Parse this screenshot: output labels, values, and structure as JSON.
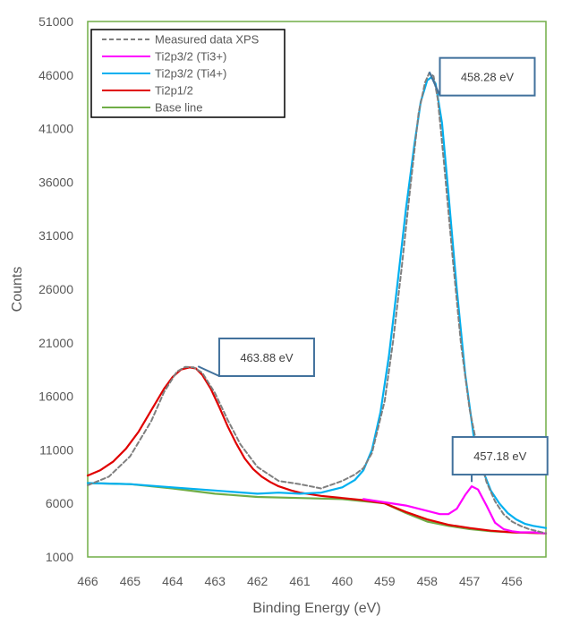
{
  "chart_data": {
    "type": "line",
    "title": "",
    "xlabel": "Binding Energy (eV)",
    "ylabel": "Counts",
    "xlim": [
      466,
      455.2
    ],
    "ylim": [
      1000,
      51000
    ],
    "x_ticks": [
      "466",
      "465",
      "464",
      "463",
      "462",
      "461",
      "460",
      "459",
      "458",
      "457",
      "456"
    ],
    "y_ticks": [
      "1000",
      "6000",
      "11000",
      "16000",
      "21000",
      "26000",
      "31000",
      "36000",
      "41000",
      "46000",
      "51000"
    ],
    "colors": {
      "plot_border": "#70AD47",
      "callout_border": "#41719C",
      "callout_line": "#41719C"
    },
    "legend": {
      "position": "top-left",
      "entries": [
        "Measured data XPS",
        "Ti2p3/2 (Ti3+)",
        "Ti2p3/2 (Ti4+)",
        "Ti2p1/2",
        "Base line"
      ]
    },
    "series": [
      {
        "name": "Measured data XPS",
        "color": "#7F7F7F",
        "dashed": true,
        "x": [
          466.0,
          465.5,
          465.0,
          464.5,
          464.2,
          463.9,
          463.7,
          463.5,
          463.3,
          463.0,
          462.7,
          462.4,
          462.0,
          461.5,
          461.0,
          460.5,
          460.0,
          459.7,
          459.5,
          459.3,
          459.0,
          458.8,
          458.6,
          458.4,
          458.2,
          458.05,
          457.95,
          457.85,
          457.75,
          457.6,
          457.4,
          457.2,
          457.0,
          456.8,
          456.6,
          456.4,
          456.2,
          456.0,
          455.8,
          455.6,
          455.4,
          455.2
        ],
        "y": [
          7700,
          8500,
          10400,
          13700,
          16400,
          18300,
          18750,
          18700,
          18200,
          16300,
          13800,
          11500,
          9400,
          8100,
          7800,
          7400,
          8100,
          8700,
          9300,
          10700,
          15600,
          21200,
          28000,
          35400,
          42500,
          45300,
          46200,
          45900,
          43800,
          37700,
          29000,
          20800,
          14800,
          10900,
          8000,
          6200,
          5000,
          4300,
          3900,
          3600,
          3400,
          3200
        ]
      },
      {
        "name": "Ti2p3/2 (Ti3+)",
        "color": "#FF00FF",
        "dashed": false,
        "x": [
          459.5,
          458.5,
          458.0,
          457.7,
          457.5,
          457.3,
          457.1,
          456.95,
          456.8,
          456.6,
          456.4,
          456.2,
          456.0,
          455.8,
          455.5,
          455.2
        ],
        "y": [
          6400,
          5800,
          5300,
          5000,
          5000,
          5500,
          6800,
          7600,
          7300,
          5800,
          4200,
          3600,
          3400,
          3300,
          3300,
          3200
        ]
      },
      {
        "name": "Ti2p3/2 (Ti4+)",
        "color": "#00B0F0",
        "dashed": false,
        "x": [
          466.0,
          465.0,
          464.0,
          463.0,
          462.0,
          461.5,
          461.0,
          460.5,
          460.0,
          459.7,
          459.5,
          459.3,
          459.1,
          458.9,
          458.7,
          458.5,
          458.3,
          458.15,
          458.0,
          457.9,
          457.8,
          457.65,
          457.5,
          457.3,
          457.1,
          456.9,
          456.7,
          456.5,
          456.3,
          456.1,
          455.9,
          455.7,
          455.5,
          455.2
        ],
        "y": [
          7900,
          7800,
          7500,
          7200,
          6900,
          7000,
          6900,
          7000,
          7500,
          8200,
          9100,
          11000,
          14500,
          19800,
          26500,
          33500,
          39500,
          43500,
          45500,
          45800,
          45200,
          41500,
          35000,
          26000,
          18000,
          12200,
          9200,
          7200,
          6000,
          5100,
          4500,
          4100,
          3900,
          3700
        ]
      },
      {
        "name": "Ti2p1/2",
        "color": "#E00000",
        "dashed": false,
        "x": [
          466.0,
          465.7,
          465.4,
          465.1,
          464.8,
          464.5,
          464.2,
          464.0,
          463.8,
          463.6,
          463.45,
          463.3,
          463.1,
          462.9,
          462.7,
          462.5,
          462.3,
          462.1,
          461.9,
          461.7,
          461.5,
          461.2,
          461.0,
          460.5,
          460.0,
          459.5,
          459.0,
          458.5,
          458.0,
          457.5,
          457.0,
          456.5,
          456.0,
          455.5,
          455.2
        ],
        "y": [
          8600,
          9100,
          9900,
          11100,
          12700,
          14700,
          16700,
          17800,
          18500,
          18700,
          18600,
          18000,
          16700,
          15000,
          13200,
          11600,
          10200,
          9200,
          8500,
          8000,
          7600,
          7200,
          7000,
          6700,
          6500,
          6300,
          6000,
          5200,
          4500,
          4000,
          3700,
          3450,
          3300,
          3250,
          3200
        ]
      },
      {
        "name": "Base line",
        "color": "#70AD47",
        "dashed": false,
        "x": [
          466.0,
          465.0,
          464.0,
          463.0,
          462.0,
          461.0,
          460.0,
          459.5,
          459.0,
          458.5,
          458.0,
          457.5,
          457.0,
          456.5,
          456.0,
          455.5,
          455.2
        ],
        "y": [
          7900,
          7800,
          7400,
          6900,
          6600,
          6500,
          6400,
          6200,
          6000,
          5100,
          4300,
          3900,
          3600,
          3400,
          3300,
          3250,
          3200
        ]
      }
    ],
    "annotations": [
      {
        "text": "458.28 eV",
        "point_x": 457.95,
        "point_y": 46300,
        "box_x": 457.7,
        "box_y": 47600
      },
      {
        "text": "463.88 eV",
        "point_x": 463.4,
        "point_y": 18800,
        "box_x": 462.9,
        "box_y": 21400
      },
      {
        "text": "457.18 eV",
        "point_x": 456.95,
        "point_y": 8000,
        "box_x": 457.4,
        "box_y": 12200
      }
    ]
  }
}
